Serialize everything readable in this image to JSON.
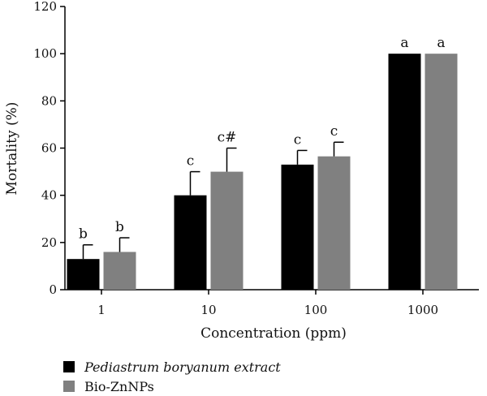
{
  "chart_data": {
    "type": "bar",
    "categories": [
      "1",
      "10",
      "100",
      "1000"
    ],
    "series": [
      {
        "name": "Pediastrum boryanum extract",
        "values": [
          13,
          40,
          53,
          100
        ],
        "errors": [
          6,
          10,
          6,
          0
        ],
        "labels": [
          "b",
          "c",
          "c",
          "a"
        ],
        "color": "#000000"
      },
      {
        "name": "Bio-ZnNPs",
        "values": [
          16,
          50,
          56.5,
          100
        ],
        "errors": [
          6,
          10,
          6,
          0
        ],
        "labels": [
          "b",
          "c#",
          "c",
          "a"
        ],
        "color": "#808080"
      }
    ],
    "xlabel": "Concentration (ppm)",
    "ylabel": "Mortality (%)",
    "ylim": [
      0,
      120
    ],
    "yticks": [
      "0",
      "20",
      "40",
      "60",
      "80",
      "100",
      "120"
    ],
    "grid": false,
    "legend_position": "bottom-left"
  }
}
